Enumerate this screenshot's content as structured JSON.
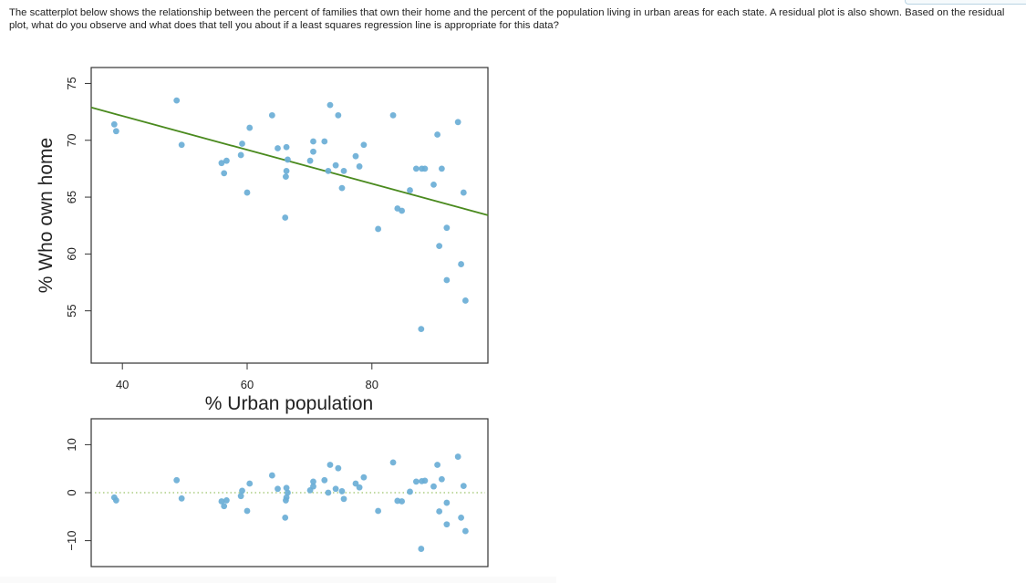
{
  "question": {
    "text": "The scatterplot below shows the relationship between the percent of families that own their home and the percent of the population living in urban areas for each state.  A residual plot is also shown.  Based on the residual plot, what do you observe and what does that tell you about if a least squares regression line is appropriate for this data?"
  },
  "colors": {
    "point": "#6aaed6",
    "regression_line": "#4a8a1e",
    "zero_line": "#9cc46a",
    "axis": "#333333",
    "text": "#222222"
  },
  "chart_data": [
    {
      "type": "scatter",
      "title": "",
      "xlabel": "% Urban population",
      "ylabel": "% Who own home",
      "xlim": [
        35,
        98.6
      ],
      "ylim": [
        50.4,
        76.4
      ],
      "x_ticks": [
        40,
        60,
        80
      ],
      "x_tick_labels": [
        "40",
        "60",
        "80"
      ],
      "y_ticks": [
        55,
        60,
        65,
        70,
        75
      ],
      "y_tick_labels": [
        "55",
        "60",
        "65",
        "70",
        "75"
      ],
      "grid": false,
      "legend": null,
      "regression_line": {
        "slope": -0.149,
        "intercept": 78.1,
        "x_start": 35,
        "x_end": 98.6
      },
      "points": [
        {
          "x": 38.7,
          "y": 71.4
        },
        {
          "x": 39.0,
          "y": 70.8
        },
        {
          "x": 48.7,
          "y": 73.5
        },
        {
          "x": 49.5,
          "y": 69.6
        },
        {
          "x": 55.9,
          "y": 68.0
        },
        {
          "x": 56.7,
          "y": 68.2
        },
        {
          "x": 56.3,
          "y": 67.1
        },
        {
          "x": 59.0,
          "y": 68.7
        },
        {
          "x": 59.2,
          "y": 69.7
        },
        {
          "x": 60.4,
          "y": 71.1
        },
        {
          "x": 60.0,
          "y": 65.4
        },
        {
          "x": 64.0,
          "y": 72.2
        },
        {
          "x": 64.9,
          "y": 69.3
        },
        {
          "x": 66.3,
          "y": 69.4
        },
        {
          "x": 66.5,
          "y": 68.3
        },
        {
          "x": 66.3,
          "y": 67.3
        },
        {
          "x": 66.2,
          "y": 66.8
        },
        {
          "x": 66.1,
          "y": 63.2
        },
        {
          "x": 70.6,
          "y": 69.9
        },
        {
          "x": 70.6,
          "y": 69.0
        },
        {
          "x": 70.1,
          "y": 68.2
        },
        {
          "x": 72.4,
          "y": 69.9
        },
        {
          "x": 73.3,
          "y": 73.1
        },
        {
          "x": 74.6,
          "y": 72.2
        },
        {
          "x": 73.0,
          "y": 67.3
        },
        {
          "x": 74.2,
          "y": 67.8
        },
        {
          "x": 75.5,
          "y": 67.3
        },
        {
          "x": 75.2,
          "y": 65.8
        },
        {
          "x": 77.4,
          "y": 68.6
        },
        {
          "x": 78.0,
          "y": 67.7
        },
        {
          "x": 78.7,
          "y": 69.6
        },
        {
          "x": 81.0,
          "y": 62.2
        },
        {
          "x": 83.4,
          "y": 72.2
        },
        {
          "x": 84.1,
          "y": 64.0
        },
        {
          "x": 84.8,
          "y": 63.8
        },
        {
          "x": 86.1,
          "y": 65.6
        },
        {
          "x": 87.1,
          "y": 67.5
        },
        {
          "x": 88.0,
          "y": 67.5
        },
        {
          "x": 88.5,
          "y": 67.5
        },
        {
          "x": 90.5,
          "y": 70.5
        },
        {
          "x": 89.9,
          "y": 66.1
        },
        {
          "x": 91.2,
          "y": 67.5
        },
        {
          "x": 92.0,
          "y": 62.3
        },
        {
          "x": 90.8,
          "y": 60.7
        },
        {
          "x": 92.0,
          "y": 57.7
        },
        {
          "x": 87.9,
          "y": 53.4
        },
        {
          "x": 93.8,
          "y": 71.6
        },
        {
          "x": 94.3,
          "y": 59.1
        },
        {
          "x": 94.7,
          "y": 65.4
        },
        {
          "x": 95.0,
          "y": 55.9
        }
      ]
    },
    {
      "type": "scatter",
      "title": "",
      "xlabel": "",
      "ylabel": "",
      "xlim": [
        35,
        98.6
      ],
      "ylim": [
        -15.4,
        15.4
      ],
      "y_ticks": [
        -10,
        0,
        10
      ],
      "y_tick_labels": [
        "−10",
        "0",
        "10"
      ],
      "grid": false,
      "legend": null,
      "reference_line": {
        "y": 0,
        "style": "dotted"
      },
      "points": [
        {
          "x": 38.7,
          "y": -1.0
        },
        {
          "x": 39.0,
          "y": -1.6
        },
        {
          "x": 48.7,
          "y": 2.6
        },
        {
          "x": 49.5,
          "y": -1.2
        },
        {
          "x": 55.9,
          "y": -1.8
        },
        {
          "x": 56.7,
          "y": -1.6
        },
        {
          "x": 56.3,
          "y": -2.8
        },
        {
          "x": 59.0,
          "y": -0.7
        },
        {
          "x": 59.2,
          "y": 0.4
        },
        {
          "x": 60.4,
          "y": 1.9
        },
        {
          "x": 60.0,
          "y": -3.8
        },
        {
          "x": 64.0,
          "y": 3.6
        },
        {
          "x": 64.9,
          "y": 0.8
        },
        {
          "x": 66.3,
          "y": 1.0
        },
        {
          "x": 66.5,
          "y": 0.0
        },
        {
          "x": 66.3,
          "y": -1.0
        },
        {
          "x": 66.2,
          "y": -1.6
        },
        {
          "x": 66.1,
          "y": -5.2
        },
        {
          "x": 70.6,
          "y": 2.3
        },
        {
          "x": 70.6,
          "y": 1.3
        },
        {
          "x": 70.1,
          "y": 0.5
        },
        {
          "x": 72.4,
          "y": 2.6
        },
        {
          "x": 73.3,
          "y": 5.8
        },
        {
          "x": 74.6,
          "y": 5.1
        },
        {
          "x": 73.0,
          "y": 0.0
        },
        {
          "x": 74.2,
          "y": 0.8
        },
        {
          "x": 75.5,
          "y": -1.3
        },
        {
          "x": 75.2,
          "y": 0.3
        },
        {
          "x": 77.4,
          "y": 1.9
        },
        {
          "x": 78.0,
          "y": 1.1
        },
        {
          "x": 78.7,
          "y": 3.2
        },
        {
          "x": 81.0,
          "y": -3.8
        },
        {
          "x": 83.4,
          "y": 6.3
        },
        {
          "x": 84.1,
          "y": -1.7
        },
        {
          "x": 84.8,
          "y": -1.8
        },
        {
          "x": 86.1,
          "y": 0.2
        },
        {
          "x": 87.1,
          "y": 2.3
        },
        {
          "x": 88.0,
          "y": 2.4
        },
        {
          "x": 88.5,
          "y": 2.5
        },
        {
          "x": 90.5,
          "y": 5.8
        },
        {
          "x": 89.9,
          "y": 1.3
        },
        {
          "x": 91.2,
          "y": 2.8
        },
        {
          "x": 92.0,
          "y": -2.1
        },
        {
          "x": 90.8,
          "y": -3.9
        },
        {
          "x": 92.0,
          "y": -6.6
        },
        {
          "x": 87.9,
          "y": -11.7
        },
        {
          "x": 93.8,
          "y": 7.5
        },
        {
          "x": 94.3,
          "y": -5.2
        },
        {
          "x": 94.7,
          "y": 1.4
        },
        {
          "x": 95.0,
          "y": -8.0
        }
      ]
    }
  ]
}
